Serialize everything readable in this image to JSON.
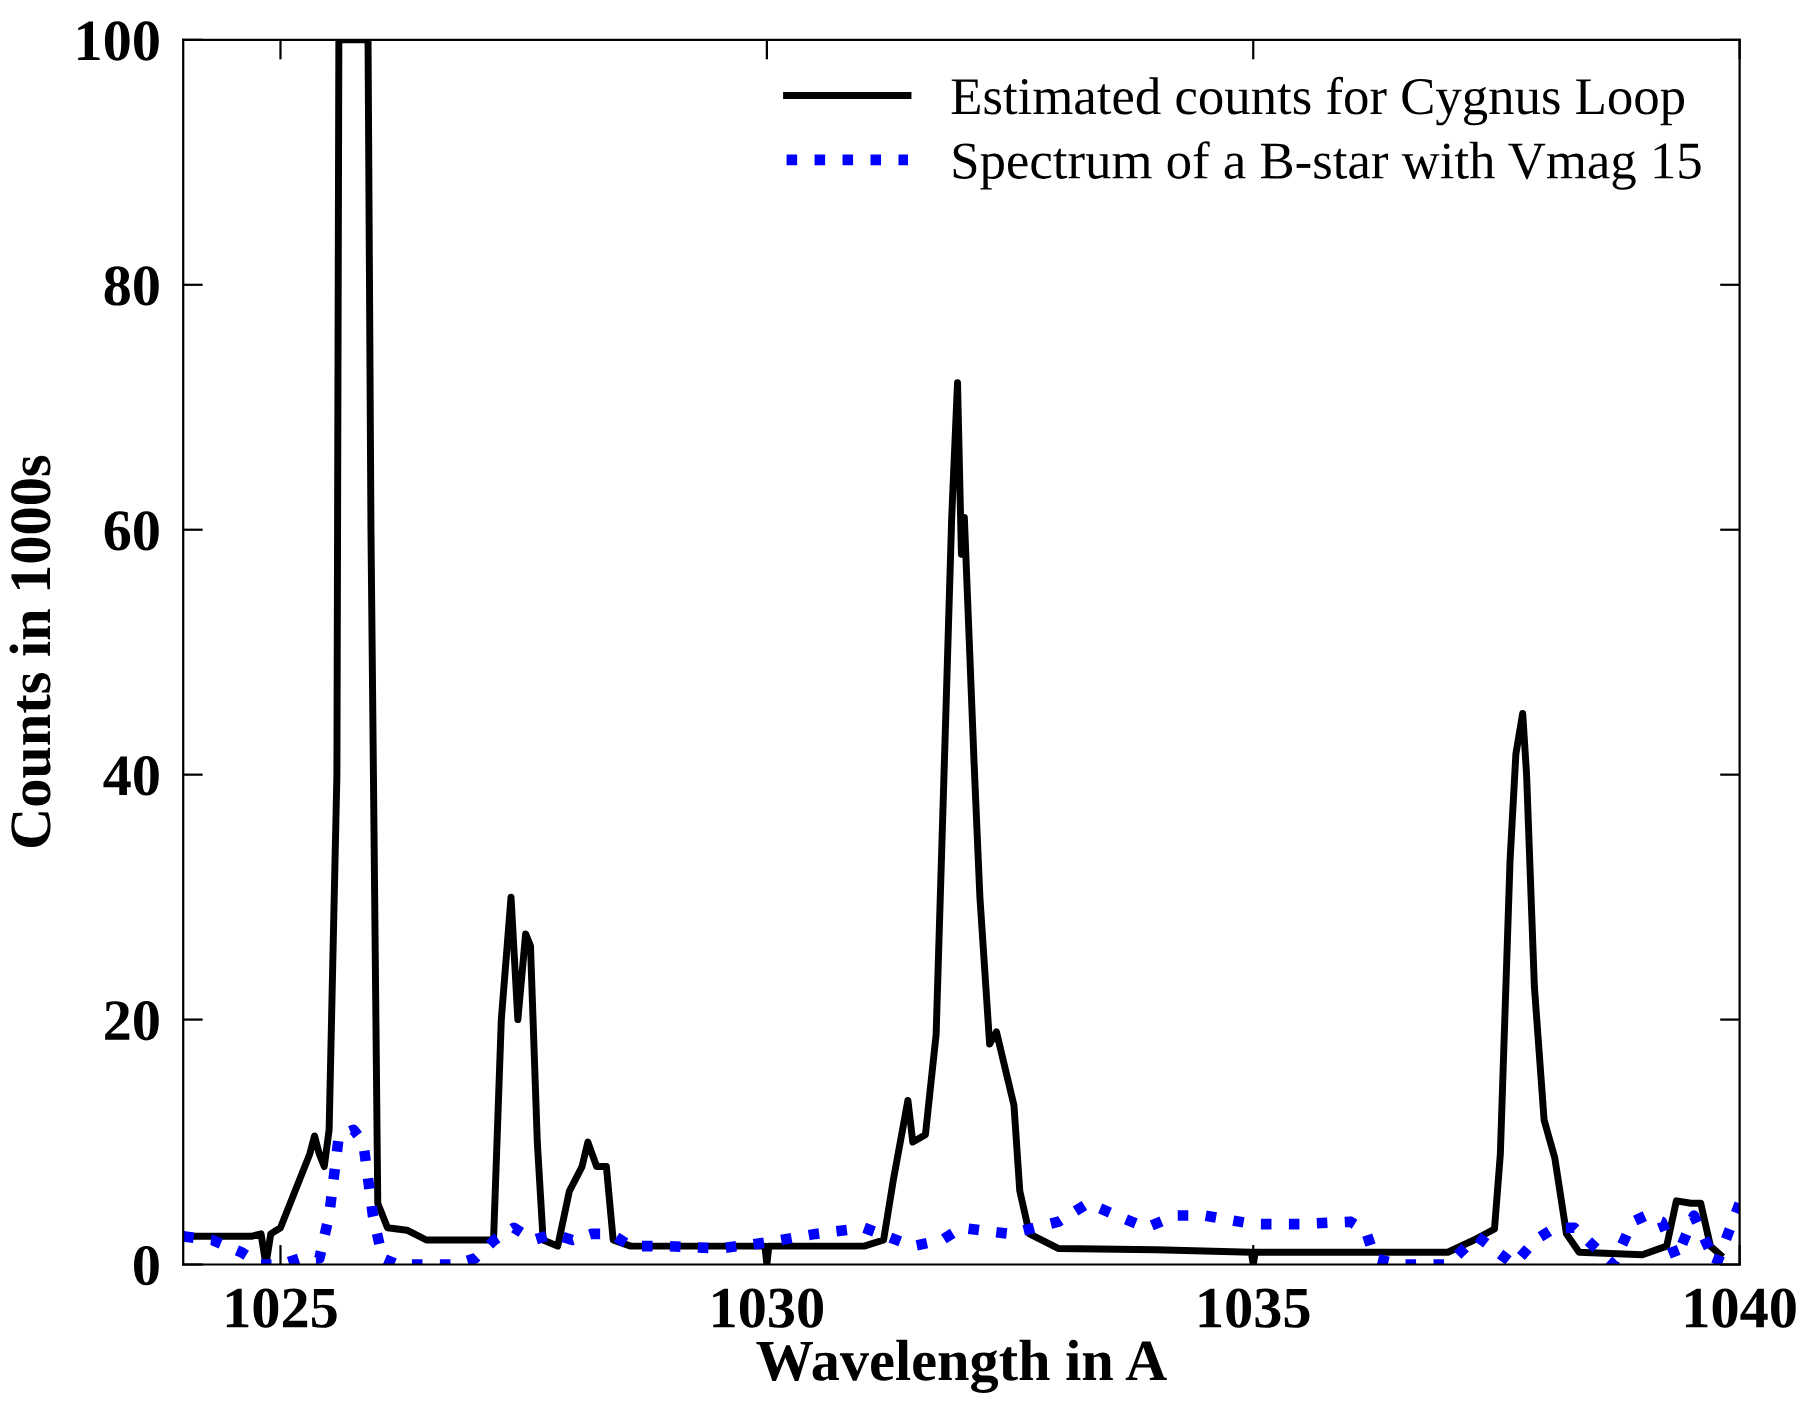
{
  "chart_data": {
    "type": "line",
    "xlabel": "Wavelength in A",
    "ylabel": "Counts in 1000s",
    "xlim": [
      1024,
      1040
    ],
    "xticks": [
      1025,
      1030,
      1035,
      1040
    ],
    "ylim": [
      0,
      100
    ],
    "yticks": [
      0,
      20,
      40,
      60,
      80,
      100
    ],
    "grid": false,
    "legend": "top right",
    "marker": "none",
    "series": [
      {
        "name": "Estimated counts for Cygnus Loop",
        "color": "#000000",
        "line_style": "solid",
        "x": [
          1024.0,
          1024.7,
          1024.8,
          1024.85,
          1024.9,
          1025.0,
          1025.1,
          1025.2,
          1025.3,
          1025.35,
          1025.4,
          1025.45,
          1025.5,
          1025.58,
          1025.6,
          1025.9,
          1025.93,
          1026.0,
          1026.05,
          1026.1,
          1026.3,
          1026.5,
          1027.0,
          1027.19,
          1027.27,
          1027.37,
          1027.44,
          1027.52,
          1027.57,
          1027.64,
          1027.7,
          1027.85,
          1027.97,
          1028.1,
          1028.16,
          1028.25,
          1028.35,
          1028.42,
          1028.6,
          1029.0,
          1029.98,
          1030.0,
          1030.02,
          1031.0,
          1031.2,
          1031.3,
          1031.45,
          1031.5,
          1031.63,
          1031.74,
          1031.84,
          1031.9,
          1031.96,
          1032.0,
          1032.03,
          1032.13,
          1032.19,
          1032.29,
          1032.36,
          1032.54,
          1032.6,
          1032.7,
          1033.0,
          1034.0,
          1034.98,
          1035.0,
          1035.02,
          1036.0,
          1037.0,
          1037.27,
          1037.48,
          1037.54,
          1037.64,
          1037.7,
          1037.77,
          1037.81,
          1037.89,
          1037.99,
          1038.1,
          1038.22,
          1038.35,
          1039.0,
          1039.25,
          1039.35,
          1039.5,
          1039.6,
          1039.7,
          1039.8
        ],
        "values": [
          2.3,
          2.3,
          2.5,
          0,
          2.5,
          3,
          5,
          7,
          9,
          10.5,
          9,
          8,
          11,
          40,
          100,
          100,
          60,
          5,
          4,
          3,
          2.8,
          2,
          2,
          2,
          20,
          30,
          20,
          27,
          26,
          10,
          2,
          1.5,
          6,
          8,
          10,
          8,
          8,
          2,
          1.5,
          1.5,
          1.5,
          0,
          1.5,
          1.5,
          2,
          6.9,
          13.4,
          10,
          10.6,
          18.8,
          45,
          61,
          72,
          58,
          61,
          41,
          30,
          18,
          19,
          13,
          6,
          2.5,
          1.3,
          1.2,
          1.0,
          0,
          1.0,
          1.0,
          1.0,
          2,
          2.9,
          9,
          33,
          41.7,
          45,
          40,
          22.7,
          11.8,
          8.7,
          2.5,
          1.0,
          0.8,
          1.5,
          5.2,
          5,
          5,
          1.5,
          0.8
        ]
      },
      {
        "name": "Spectrum of a B-star with Vmag 15",
        "color": "#0000ff",
        "line_style": "dotted",
        "x": [
          1024.0,
          1024.3,
          1024.6,
          1024.8,
          1025.0,
          1025.2,
          1025.4,
          1025.5,
          1025.6,
          1025.75,
          1025.85,
          1025.95,
          1026.05,
          1026.2,
          1026.5,
          1026.8,
          1027.0,
          1027.2,
          1027.4,
          1027.6,
          1027.8,
          1028.0,
          1028.2,
          1028.4,
          1028.6,
          1029.0,
          1029.5,
          1030.0,
          1030.5,
          1031.0,
          1031.5,
          1031.8,
          1032.0,
          1032.5,
          1033.0,
          1033.3,
          1033.6,
          1033.9,
          1034.2,
          1034.5,
          1035.0,
          1035.5,
          1036.0,
          1036.16,
          1036.25,
          1036.5,
          1037.0,
          1037.3,
          1037.68,
          1037.9,
          1038.1,
          1038.3,
          1038.5,
          1038.7,
          1038.9,
          1039.04,
          1039.2,
          1039.35,
          1039.53,
          1039.76,
          1040.0
        ],
        "values": [
          2.3,
          2,
          1,
          0,
          0,
          0.5,
          0.5,
          4,
          10.5,
          11,
          10,
          4,
          0.5,
          0,
          0,
          0,
          0.5,
          2,
          3,
          2,
          2.5,
          2,
          2.5,
          2.5,
          1.5,
          1.5,
          1.3,
          1.8,
          2.5,
          3,
          1.5,
          2,
          3,
          2.5,
          3.5,
          5,
          4,
          3,
          4,
          4,
          3.3,
          3.3,
          3.5,
          2.7,
          0.5,
          0,
          0,
          2.3,
          0,
          2,
          3,
          3,
          1.5,
          0,
          3.5,
          4,
          3.5,
          0.5,
          4,
          0,
          5
        ]
      }
    ]
  }
}
